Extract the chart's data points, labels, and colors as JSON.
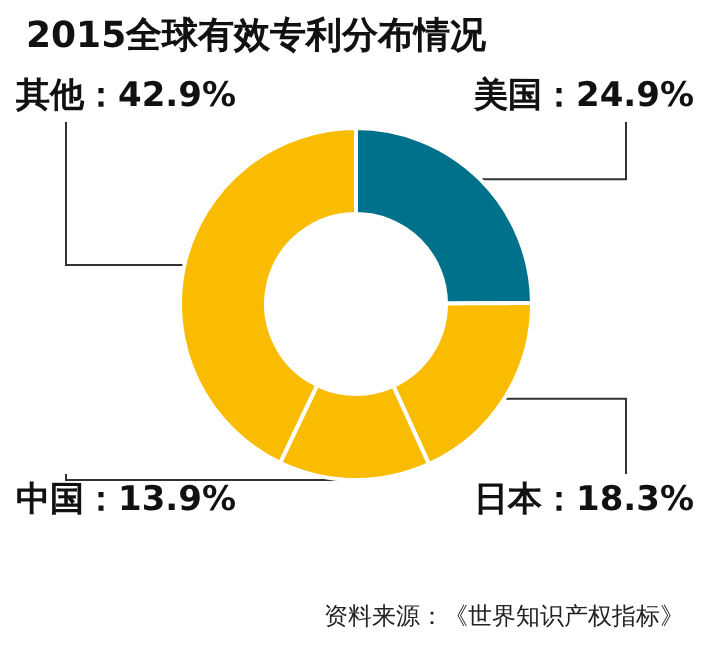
{
  "chart_data": {
    "type": "donut",
    "title": "2015全球有效专利分布情况",
    "categories": [
      "美国",
      "日本",
      "中国",
      "其他"
    ],
    "values": [
      24.9,
      18.3,
      13.9,
      42.9
    ],
    "value_labels": [
      "24.9%",
      "18.3%",
      "13.9%",
      "42.9%"
    ],
    "colors": [
      "#00718a",
      "#f9bc00",
      "#f9bc00",
      "#f9bc00"
    ],
    "annotations": [
      "资料来源：《世界知识产权指标》"
    ]
  }
}
